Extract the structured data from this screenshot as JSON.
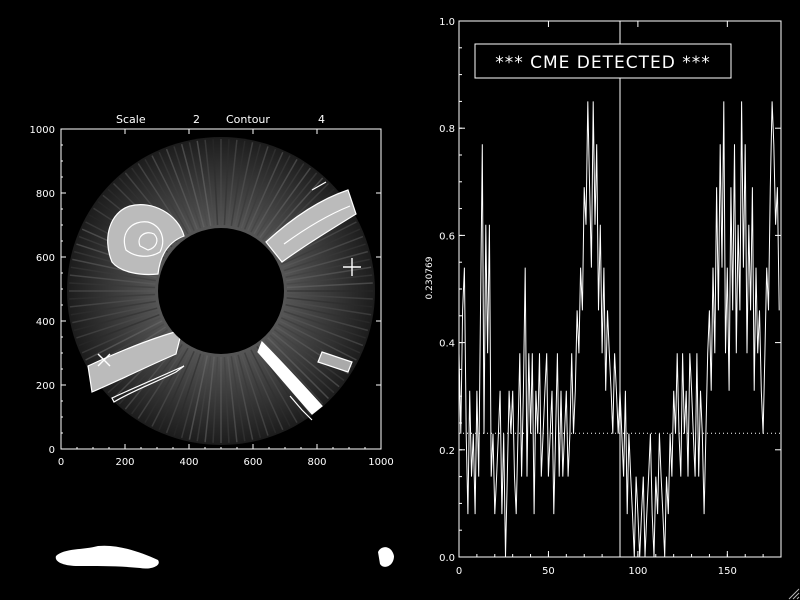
{
  "left_panel": {
    "scale_label": "Scale",
    "scale_value": "2",
    "contour_label": "Contour",
    "contour_value": "4",
    "axis_x_ticks": [
      "0",
      "200",
      "400",
      "600",
      "800",
      "1000"
    ],
    "axis_y_ticks": [
      "0",
      "200",
      "400",
      "600",
      "800",
      "1000"
    ]
  },
  "right_panel": {
    "banner_text": "*** CME DETECTED ***",
    "ylabel": "0.230769",
    "threshold": 0.230769,
    "axis_x_ticks": [
      "0",
      "50",
      "100",
      "150"
    ],
    "axis_y_ticks": [
      "0.0",
      "0.2",
      "0.4",
      "0.6",
      "0.8",
      "1.0"
    ]
  },
  "chart_data": {
    "type": "line",
    "title": "",
    "xlabel": "",
    "ylabel": "0.230769",
    "xlim": [
      0,
      180
    ],
    "ylim": [
      0,
      1.0
    ],
    "grid": false,
    "legend": "none",
    "threshold_line": 0.230769,
    "marker_x": 90,
    "x_step": 1,
    "series": [
      {
        "values": [
          0.38,
          0.23,
          0.46,
          0.54,
          0.23,
          0.08,
          0.31,
          0.15,
          0.23,
          0.08,
          0.31,
          0.15,
          0.46,
          0.77,
          0.23,
          0.62,
          0.38,
          0.62,
          0.15,
          0.23,
          0.08,
          0.15,
          0.23,
          0.31,
          0.08,
          0.23,
          0.0,
          0.15,
          0.31,
          0.23,
          0.31,
          0.15,
          0.08,
          0.23,
          0.38,
          0.15,
          0.31,
          0.54,
          0.15,
          0.38,
          0.23,
          0.38,
          0.08,
          0.31,
          0.23,
          0.38,
          0.15,
          0.23,
          0.31,
          0.38,
          0.15,
          0.23,
          0.31,
          0.08,
          0.23,
          0.38,
          0.15,
          0.31,
          0.15,
          0.23,
          0.31,
          0.15,
          0.23,
          0.38,
          0.23,
          0.31,
          0.46,
          0.38,
          0.54,
          0.46,
          0.69,
          0.62,
          0.85,
          0.69,
          0.54,
          0.85,
          0.62,
          0.77,
          0.46,
          0.62,
          0.38,
          0.54,
          0.31,
          0.46,
          0.38,
          0.31,
          0.23,
          0.38,
          0.31,
          0.23,
          0.31,
          0.23,
          0.15,
          0.31,
          0.08,
          0.23,
          0.15,
          0.08,
          0.0,
          0.15,
          0.08,
          0.0,
          0.08,
          0.15,
          0.0,
          0.08,
          0.15,
          0.23,
          0.08,
          0.0,
          0.15,
          0.08,
          0.23,
          0.15,
          0.08,
          0.0,
          0.15,
          0.08,
          0.23,
          0.15,
          0.31,
          0.23,
          0.38,
          0.23,
          0.15,
          0.38,
          0.23,
          0.31,
          0.15,
          0.38,
          0.31,
          0.23,
          0.15,
          0.38,
          0.15,
          0.31,
          0.23,
          0.08,
          0.23,
          0.38,
          0.46,
          0.31,
          0.54,
          0.38,
          0.69,
          0.46,
          0.77,
          0.54,
          0.85,
          0.38,
          0.54,
          0.31,
          0.69,
          0.46,
          0.77,
          0.38,
          0.62,
          0.46,
          0.85,
          0.54,
          0.77,
          0.38,
          0.62,
          0.46,
          0.69,
          0.31,
          0.54,
          0.38,
          0.46,
          0.31,
          0.23,
          0.38,
          0.54,
          0.46,
          0.69,
          0.85,
          0.77,
          0.62,
          0.69,
          0.46
        ]
      }
    ]
  }
}
